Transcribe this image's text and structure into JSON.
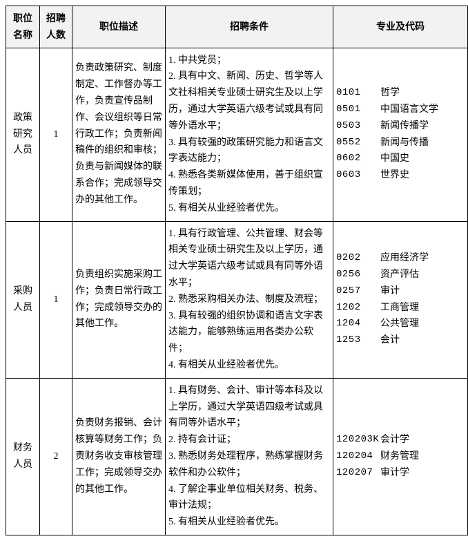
{
  "columns": {
    "name": "职位\n名称",
    "count": "招聘\n人数",
    "desc": "职位描述",
    "cond": "招聘条件",
    "major": "专业及代码"
  },
  "rows": [
    {
      "name": "政策\n研究\n人员",
      "count": "1",
      "desc": "负责政策研究、制度制定、工作督办等工作，负责宣传品制作、会议组织等日常行政工作；负责新闻稿件的组织和审核；负责与新闻媒体的联系合作；完成领导交办的其他工作。",
      "cond": "1. 中共党员；\n2. 具有中文、新闻、历史、哲学等人文社科相关专业硕士研究生及以上学历，通过大学英语六级考试或具有同等外语水平；\n3. 具有较强的政策研究能力和语言文字表达能力；\n4. 熟悉各类新媒体使用，善于组织宣传策划；\n5. 有相关从业经验者优先。",
      "majors": [
        {
          "code": "0101",
          "label": "哲学"
        },
        {
          "code": "0501",
          "label": "中国语言文学"
        },
        {
          "code": "0503",
          "label": "新闻传播学"
        },
        {
          "code": "0552",
          "label": "新闻与传播"
        },
        {
          "code": "0602",
          "label": "中国史"
        },
        {
          "code": "0603",
          "label": "世界史"
        }
      ]
    },
    {
      "name": "采购\n人员",
      "count": "1",
      "desc": "负责组织实施采购工作；负责日常行政工作；完成领导交办的其他工作。",
      "cond": "1. 具有行政管理、公共管理、财会等相关专业硕士研究生及以上学历，通过大学英语六级考试或具有同等外语水平；\n2. 熟悉采购相关办法、制度及流程；\n3. 具有较强的组织协调和语言文字表达能力，能够熟练运用各类办公软件；\n4. 有相关从业经验者优先。",
      "majors": [
        {
          "code": "0202",
          "label": "应用经济学"
        },
        {
          "code": "0256",
          "label": "资产评估"
        },
        {
          "code": "0257",
          "label": "审计"
        },
        {
          "code": "1202",
          "label": "工商管理"
        },
        {
          "code": "1204",
          "label": "公共管理"
        },
        {
          "code": "1253",
          "label": "会计"
        }
      ]
    },
    {
      "name": "财务\n人员",
      "count": "2",
      "desc": "负责财务报销、会计核算等财务工作；负责财务收支审核管理工作；完成领导交办的其他工作。",
      "cond": "1. 具有财务、会计、审计等本科及以上学历，通过大学英语四级考试或具有同等外语水平；\n2. 持有会计证；\n3. 熟悉财务处理程序，熟练掌握财务软件和办公软件；\n4. 了解企事业单位相关财务、税务、审计法规；\n5. 有相关从业经验者优先。",
      "majors": [
        {
          "code": "120203K",
          "label": "会计学"
        },
        {
          "code": "120204",
          "label": "财务管理"
        },
        {
          "code": "120207",
          "label": "审计学"
        }
      ]
    }
  ]
}
